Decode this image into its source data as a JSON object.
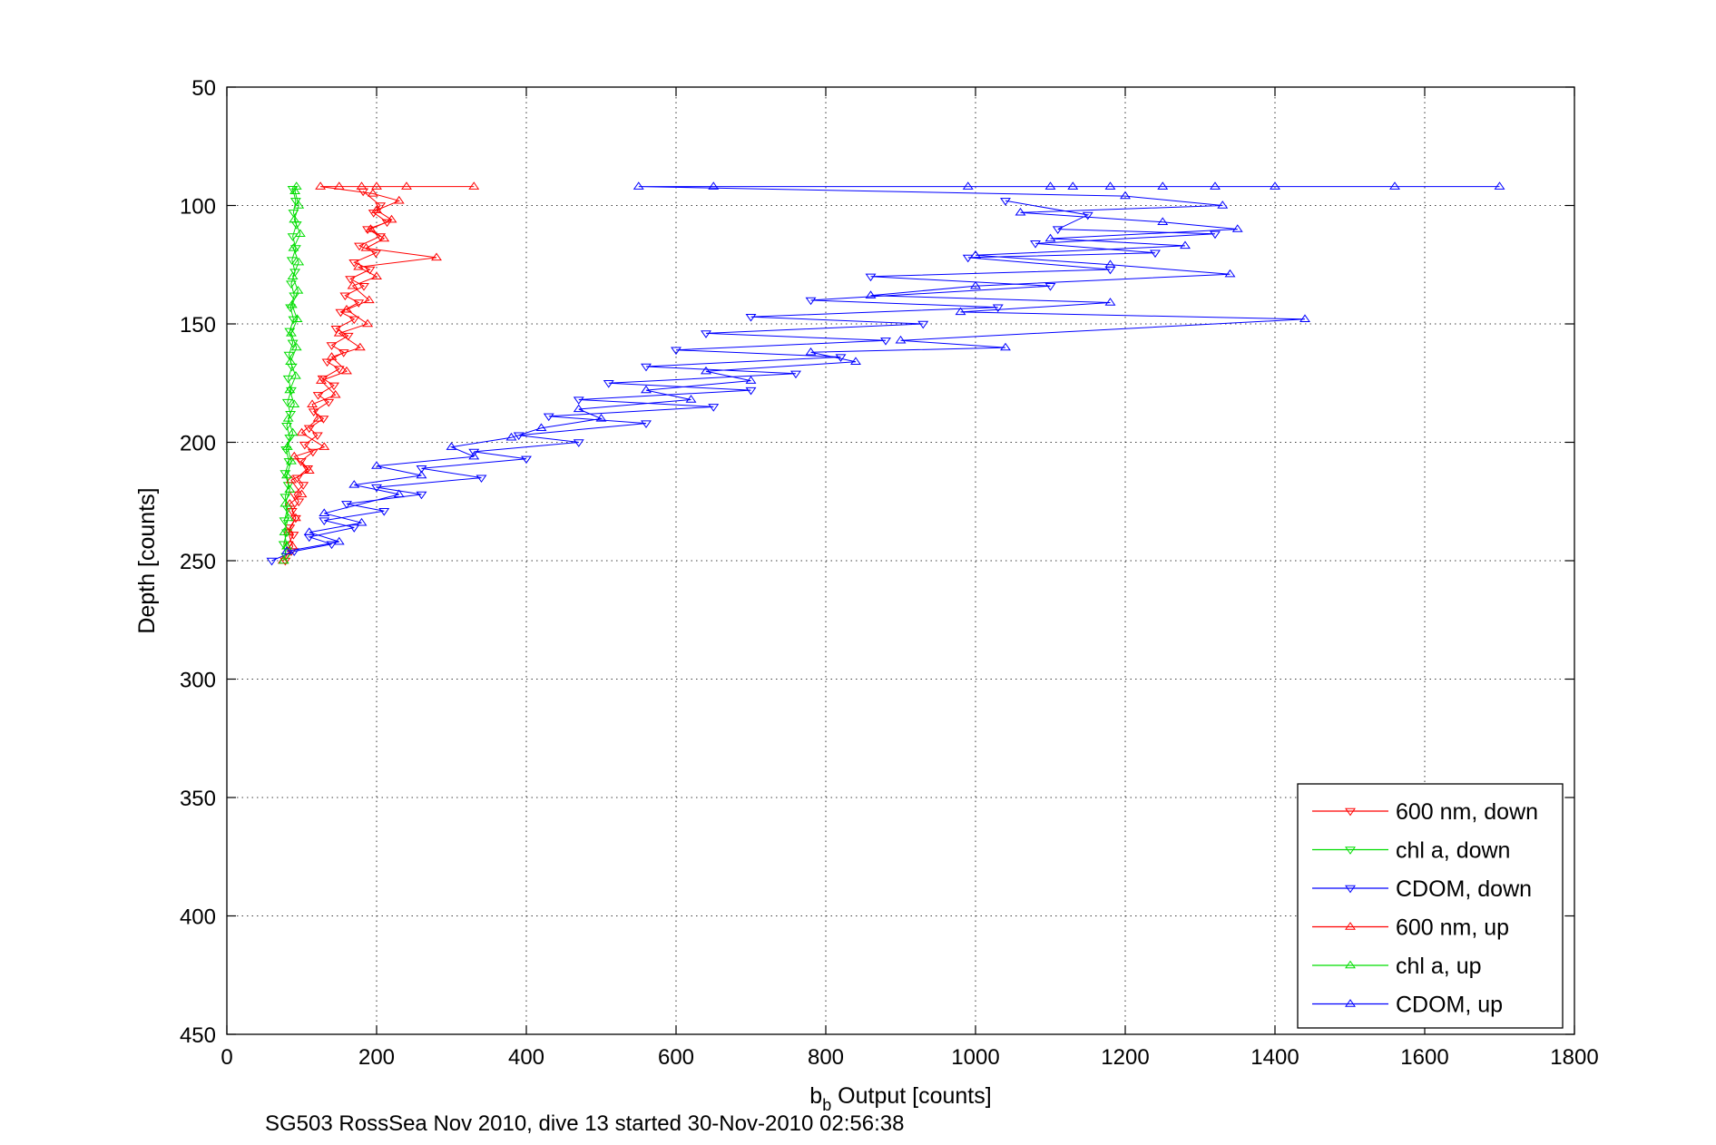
{
  "chart_data": {
    "type": "line",
    "caption": "SG503 RossSea Nov 2010, dive 13 started 30-Nov-2010 02:56:38",
    "xlabel_main": "b",
    "xlabel_sub": "b",
    "xlabel_rest": " Output [counts]",
    "ylabel": "Depth [counts]",
    "xlim": [
      0,
      1800
    ],
    "ylim": [
      50,
      450
    ],
    "y_reversed": true,
    "grid": true,
    "legend_position": "bottom-right",
    "xticks": [
      "0",
      "200",
      "400",
      "600",
      "800",
      "1000",
      "1200",
      "1400",
      "1600",
      "1800"
    ],
    "yticks": [
      "50",
      "100",
      "150",
      "200",
      "250",
      "300",
      "350",
      "400",
      "450"
    ],
    "series": [
      {
        "name": "600 nm, down",
        "color": "#ff0000",
        "marker": "triangle-down",
        "points": [
          [
            182,
            94
          ],
          [
            205,
            100
          ],
          [
            196,
            103
          ],
          [
            214,
            107
          ],
          [
            188,
            110
          ],
          [
            205,
            113
          ],
          [
            177,
            117
          ],
          [
            199,
            120
          ],
          [
            170,
            124
          ],
          [
            191,
            127
          ],
          [
            165,
            131
          ],
          [
            183,
            134
          ],
          [
            158,
            138
          ],
          [
            176,
            141
          ],
          [
            152,
            145
          ],
          [
            170,
            148
          ],
          [
            146,
            152
          ],
          [
            162,
            155
          ],
          [
            140,
            159
          ],
          [
            156,
            162
          ],
          [
            134,
            166
          ],
          [
            150,
            169
          ],
          [
            128,
            173
          ],
          [
            143,
            176
          ],
          [
            122,
            180
          ],
          [
            136,
            183
          ],
          [
            116,
            187
          ],
          [
            129,
            190
          ],
          [
            110,
            194
          ],
          [
            121,
            197
          ],
          [
            104,
            201
          ],
          [
            115,
            204
          ],
          [
            99,
            208
          ],
          [
            108,
            211
          ],
          [
            94,
            215
          ],
          [
            102,
            218
          ],
          [
            90,
            222
          ],
          [
            96,
            225
          ],
          [
            87,
            229
          ],
          [
            92,
            232
          ],
          [
            84,
            236
          ],
          [
            89,
            239
          ],
          [
            82,
            243
          ],
          [
            86,
            246
          ],
          [
            78,
            250
          ]
        ]
      },
      {
        "name": "chl a, down",
        "color": "#00dd00",
        "marker": "triangle-down",
        "points": [
          [
            88,
            93
          ],
          [
            92,
            98
          ],
          [
            89,
            103
          ],
          [
            93,
            108
          ],
          [
            88,
            113
          ],
          [
            92,
            118
          ],
          [
            87,
            123
          ],
          [
            91,
            128
          ],
          [
            86,
            133
          ],
          [
            90,
            138
          ],
          [
            85,
            143
          ],
          [
            89,
            148
          ],
          [
            84,
            153
          ],
          [
            88,
            158
          ],
          [
            83,
            163
          ],
          [
            87,
            168
          ],
          [
            82,
            173
          ],
          [
            86,
            178
          ],
          [
            81,
            183
          ],
          [
            85,
            188
          ],
          [
            80,
            193
          ],
          [
            84,
            198
          ],
          [
            79,
            203
          ],
          [
            83,
            208
          ],
          [
            78,
            213
          ],
          [
            82,
            218
          ],
          [
            78,
            223
          ],
          [
            81,
            228
          ],
          [
            77,
            233
          ],
          [
            80,
            238
          ],
          [
            76,
            243
          ],
          [
            79,
            248
          ]
        ]
      },
      {
        "name": "CDOM, down",
        "color": "#0000ff",
        "marker": "triangle-down",
        "points": [
          [
            1040,
            98
          ],
          [
            1150,
            104
          ],
          [
            1110,
            110
          ],
          [
            1320,
            112
          ],
          [
            1080,
            116
          ],
          [
            1240,
            120
          ],
          [
            990,
            122
          ],
          [
            1180,
            127
          ],
          [
            860,
            130
          ],
          [
            1100,
            134
          ],
          [
            780,
            140
          ],
          [
            1030,
            143
          ],
          [
            700,
            147
          ],
          [
            930,
            150
          ],
          [
            640,
            154
          ],
          [
            880,
            157
          ],
          [
            600,
            161
          ],
          [
            820,
            164
          ],
          [
            560,
            168
          ],
          [
            760,
            171
          ],
          [
            510,
            175
          ],
          [
            700,
            178
          ],
          [
            470,
            182
          ],
          [
            650,
            185
          ],
          [
            430,
            189
          ],
          [
            560,
            192
          ],
          [
            390,
            197
          ],
          [
            470,
            200
          ],
          [
            330,
            204
          ],
          [
            400,
            207
          ],
          [
            260,
            211
          ],
          [
            340,
            215
          ],
          [
            200,
            219
          ],
          [
            260,
            222
          ],
          [
            160,
            226
          ],
          [
            210,
            229
          ],
          [
            130,
            233
          ],
          [
            170,
            236
          ],
          [
            110,
            240
          ],
          [
            140,
            243
          ],
          [
            90,
            246
          ],
          [
            60,
            250
          ]
        ]
      },
      {
        "name": "600 nm, up",
        "color": "#ff0000",
        "marker": "triangle-up",
        "points": [
          [
            75,
            250
          ],
          [
            88,
            244
          ],
          [
            82,
            238
          ],
          [
            92,
            232
          ],
          [
            84,
            226
          ],
          [
            100,
            222
          ],
          [
            86,
            216
          ],
          [
            110,
            212
          ],
          [
            90,
            206
          ],
          [
            130,
            202
          ],
          [
            100,
            196
          ],
          [
            122,
            190
          ],
          [
            114,
            184
          ],
          [
            145,
            180
          ],
          [
            126,
            174
          ],
          [
            160,
            170
          ],
          [
            140,
            164
          ],
          [
            178,
            160
          ],
          [
            150,
            154
          ],
          [
            188,
            150
          ],
          [
            160,
            144
          ],
          [
            190,
            140
          ],
          [
            168,
            134
          ],
          [
            200,
            130
          ],
          [
            176,
            126
          ],
          [
            280,
            122
          ],
          [
            186,
            118
          ],
          [
            210,
            114
          ],
          [
            192,
            110
          ],
          [
            220,
            106
          ],
          [
            200,
            102
          ],
          [
            230,
            98
          ],
          [
            195,
            95
          ],
          [
            125,
            92
          ],
          [
            150,
            92
          ],
          [
            180,
            92
          ],
          [
            200,
            92
          ],
          [
            240,
            92
          ],
          [
            330,
            92
          ]
        ]
      },
      {
        "name": "chl a, up",
        "color": "#00dd00",
        "marker": "triangle-up",
        "points": [
          [
            76,
            250
          ],
          [
            80,
            244
          ],
          [
            77,
            238
          ],
          [
            82,
            232
          ],
          [
            78,
            226
          ],
          [
            84,
            220
          ],
          [
            80,
            214
          ],
          [
            86,
            208
          ],
          [
            81,
            202
          ],
          [
            88,
            196
          ],
          [
            82,
            190
          ],
          [
            90,
            184
          ],
          [
            84,
            178
          ],
          [
            92,
            172
          ],
          [
            85,
            166
          ],
          [
            93,
            160
          ],
          [
            86,
            154
          ],
          [
            94,
            148
          ],
          [
            87,
            142
          ],
          [
            95,
            136
          ],
          [
            88,
            130
          ],
          [
            96,
            124
          ],
          [
            89,
            118
          ],
          [
            98,
            112
          ],
          [
            90,
            106
          ],
          [
            96,
            100
          ],
          [
            91,
            94
          ],
          [
            93,
            92
          ]
        ]
      },
      {
        "name": "CDOM, up",
        "color": "#0000ff",
        "marker": "triangle-up",
        "points": [
          [
            80,
            246
          ],
          [
            150,
            242
          ],
          [
            110,
            238
          ],
          [
            180,
            234
          ],
          [
            130,
            230
          ],
          [
            230,
            222
          ],
          [
            170,
            218
          ],
          [
            260,
            214
          ],
          [
            200,
            210
          ],
          [
            330,
            206
          ],
          [
            300,
            202
          ],
          [
            380,
            198
          ],
          [
            420,
            194
          ],
          [
            500,
            190
          ],
          [
            470,
            186
          ],
          [
            620,
            182
          ],
          [
            560,
            178
          ],
          [
            700,
            174
          ],
          [
            640,
            170
          ],
          [
            840,
            166
          ],
          [
            780,
            162
          ],
          [
            1040,
            160
          ],
          [
            900,
            157
          ],
          [
            1440,
            148
          ],
          [
            980,
            145
          ],
          [
            1180,
            141
          ],
          [
            860,
            138
          ],
          [
            1000,
            134
          ],
          [
            1340,
            129
          ],
          [
            1180,
            125
          ],
          [
            1000,
            121
          ],
          [
            1280,
            117
          ],
          [
            1100,
            114
          ],
          [
            1350,
            110
          ],
          [
            1250,
            107
          ],
          [
            1060,
            103
          ],
          [
            1330,
            100
          ],
          [
            1200,
            96
          ],
          [
            550,
            92
          ],
          [
            650,
            92
          ],
          [
            990,
            92
          ],
          [
            1100,
            92
          ],
          [
            1130,
            92
          ],
          [
            1180,
            92
          ],
          [
            1250,
            92
          ],
          [
            1320,
            92
          ],
          [
            1400,
            92
          ],
          [
            1560,
            92
          ],
          [
            1700,
            92
          ]
        ]
      }
    ]
  }
}
